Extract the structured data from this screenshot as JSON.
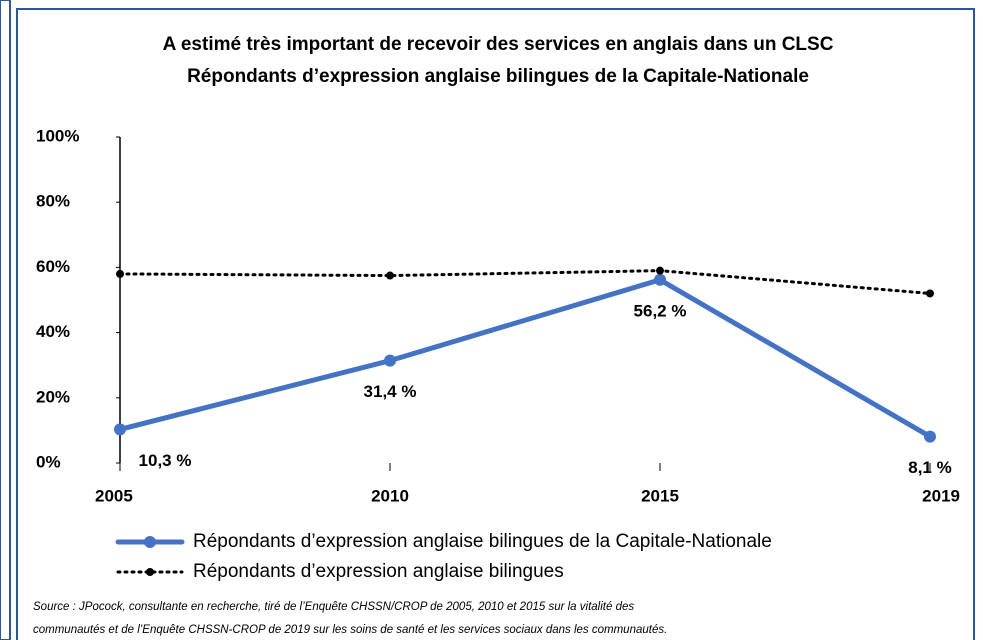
{
  "chart_data": {
    "type": "line",
    "title": [
      "A estimé très important de recevoir des services en anglais  dans un CLSC",
      "Répondants d’expression anglaise bilingues de la Capitale-Nationale"
    ],
    "categories": [
      "2005",
      "2010",
      "2015",
      "2019"
    ],
    "series": [
      {
        "name": "Répondants d’expression anglaise bilingues de la Capitale-Nationale",
        "color": "#4472c4",
        "style": "solid",
        "values": [
          10.3,
          31.4,
          56.2,
          8.1
        ],
        "value_labels": [
          "10,3 %",
          "31,4 %",
          "56,2 %",
          "8,1 %"
        ]
      },
      {
        "name": "Répondants d’expression anglaise bilingues",
        "color": "#000000",
        "style": "dotted",
        "values": [
          58,
          57.5,
          59,
          52
        ]
      }
    ],
    "ylim": [
      0,
      100
    ],
    "yticks": [
      {
        "value": 0,
        "label": "0%"
      },
      {
        "value": 20,
        "label": "20%"
      },
      {
        "value": 40,
        "label": "40%"
      },
      {
        "value": 60,
        "label": "60%"
      },
      {
        "value": 80,
        "label": "80%"
      },
      {
        "value": 100,
        "label": "100%"
      }
    ],
    "legend": "bottom",
    "source": [
      "Source : JPocock, consultante en recherche, tiré de l’Enquête CHSSN/CROP de 2005, 2010 et 2015 sur la vitalité des",
      "communautés et de l’Enquête CHSSN-CROP de 2019 sur les soins de santé et les services sociaux dans les communautés."
    ]
  }
}
